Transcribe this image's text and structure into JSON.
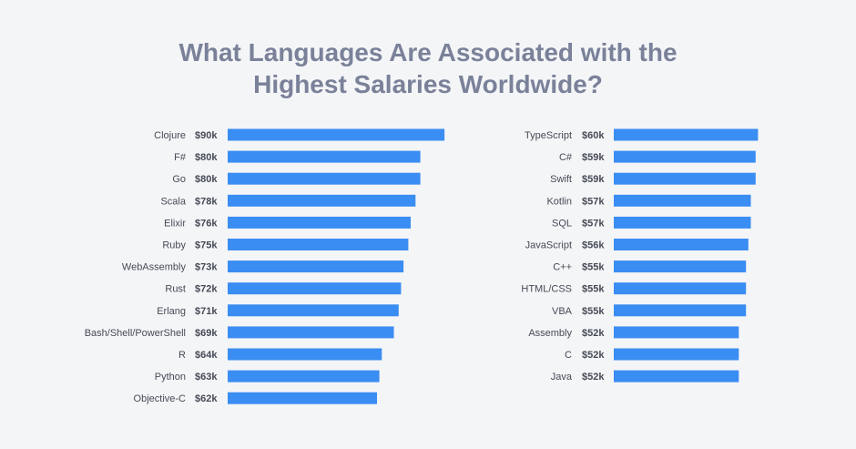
{
  "title": {
    "line1": "What Languages Are Associated with the",
    "line2": "Highest Salaries Worldwide?"
  },
  "colors": {
    "bar": "#3a8df2",
    "title": "#7a8199",
    "background": "#f4f5f7"
  },
  "chart_data": [
    {
      "type": "bar",
      "orientation": "horizontal",
      "categories": [
        "Clojure",
        "F#",
        "Go",
        "Scala",
        "Elixir",
        "Ruby",
        "WebAssembly",
        "Rust",
        "Erlang",
        "Bash/Shell/PowerShell",
        "R",
        "Python",
        "Objective-C"
      ],
      "values": [
        90,
        80,
        80,
        78,
        76,
        75,
        73,
        72,
        71,
        69,
        64,
        63,
        62
      ],
      "value_labels": [
        "$90k",
        "$80k",
        "$80k",
        "$78k",
        "$76k",
        "$75k",
        "$73k",
        "$72k",
        "$71k",
        "$69k",
        "$64k",
        "$63k",
        "$62k"
      ],
      "unit": "thousands USD"
    },
    {
      "type": "bar",
      "orientation": "horizontal",
      "categories": [
        "TypeScript",
        "C#",
        "Swift",
        "Kotlin",
        "SQL",
        "JavaScript",
        "C++",
        "HTML/CSS",
        "VBA",
        "Assembly",
        "C",
        "Java"
      ],
      "values": [
        60,
        59,
        59,
        57,
        57,
        56,
        55,
        55,
        55,
        52,
        52,
        52
      ],
      "value_labels": [
        "$60k",
        "$59k",
        "$59k",
        "$57k",
        "$57k",
        "$56k",
        "$55k",
        "$55k",
        "$55k",
        "$52k",
        "$52k",
        "$52k"
      ],
      "unit": "thousands USD"
    }
  ]
}
